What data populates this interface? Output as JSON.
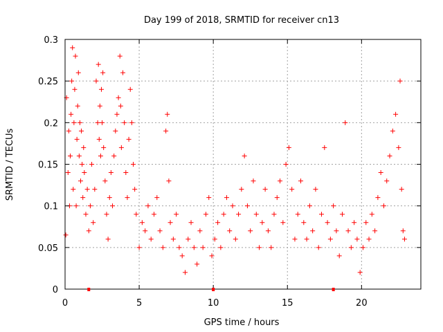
{
  "chart_data": {
    "type": "scatter",
    "title": "Day 199 of 2018, SRMTID for receiver cn13",
    "xlabel": "GPS time / hours",
    "ylabel": "SRMTID / TECUs",
    "xlim": [
      0,
      24
    ],
    "ylim": [
      0,
      0.3
    ],
    "x_ticks": [
      0,
      5,
      10,
      15,
      20
    ],
    "x_tick_labels": [
      "0",
      "5",
      "10",
      "15",
      "20"
    ],
    "y_ticks": [
      0,
      0.05,
      0.1,
      0.15,
      0.2,
      0.25,
      0.3
    ],
    "y_tick_labels": [
      "0",
      "0.05",
      "0.1",
      "0.15",
      "0.2",
      "0.25",
      "0.3"
    ],
    "grid": true,
    "marker": "+",
    "color": "#ff0000",
    "series": [
      {
        "name": "SRMTID",
        "points": [
          [
            0.05,
            0.065
          ],
          [
            0.1,
            0.23
          ],
          [
            0.2,
            0.14
          ],
          [
            0.25,
            0.19
          ],
          [
            0.3,
            0.1
          ],
          [
            0.35,
            0.16
          ],
          [
            0.4,
            0.21
          ],
          [
            0.45,
            0.25
          ],
          [
            0.5,
            0.29
          ],
          [
            0.55,
            0.12
          ],
          [
            0.6,
            0.2
          ],
          [
            0.65,
            0.24
          ],
          [
            0.7,
            0.28
          ],
          [
            0.75,
            0.1
          ],
          [
            0.8,
            0.18
          ],
          [
            0.85,
            0.22
          ],
          [
            0.9,
            0.26
          ],
          [
            0.95,
            0.16
          ],
          [
            1.0,
            0.2
          ],
          [
            1.05,
            0.13
          ],
          [
            1.1,
            0.19
          ],
          [
            1.15,
            0.15
          ],
          [
            1.2,
            0.11
          ],
          [
            1.25,
            0.17
          ],
          [
            1.3,
            0.14
          ],
          [
            1.4,
            0.09
          ],
          [
            1.5,
            0.12
          ],
          [
            1.6,
            0.07
          ],
          [
            1.7,
            0.1
          ],
          [
            1.8,
            0.15
          ],
          [
            1.9,
            0.08
          ],
          [
            2.0,
            0.12
          ],
          [
            2.1,
            0.25
          ],
          [
            2.2,
            0.2
          ],
          [
            2.25,
            0.27
          ],
          [
            2.3,
            0.18
          ],
          [
            2.35,
            0.22
          ],
          [
            2.4,
            0.16
          ],
          [
            2.45,
            0.24
          ],
          [
            2.5,
            0.2
          ],
          [
            2.55,
            0.26
          ],
          [
            2.6,
            0.17
          ],
          [
            2.7,
            0.13
          ],
          [
            2.8,
            0.09
          ],
          [
            2.9,
            0.06
          ],
          [
            3.0,
            0.11
          ],
          [
            3.1,
            0.14
          ],
          [
            3.2,
            0.1
          ],
          [
            3.3,
            0.16
          ],
          [
            3.4,
            0.19
          ],
          [
            3.5,
            0.21
          ],
          [
            3.6,
            0.23
          ],
          [
            3.7,
            0.28
          ],
          [
            3.75,
            0.22
          ],
          [
            3.8,
            0.17
          ],
          [
            3.9,
            0.26
          ],
          [
            4.0,
            0.2
          ],
          [
            4.1,
            0.14
          ],
          [
            4.2,
            0.11
          ],
          [
            4.3,
            0.18
          ],
          [
            4.4,
            0.24
          ],
          [
            4.5,
            0.2
          ],
          [
            4.6,
            0.15
          ],
          [
            4.7,
            0.12
          ],
          [
            4.8,
            0.09
          ],
          [
            5.0,
            0.05
          ],
          [
            5.2,
            0.08
          ],
          [
            5.4,
            0.07
          ],
          [
            5.6,
            0.1
          ],
          [
            5.8,
            0.06
          ],
          [
            6.0,
            0.09
          ],
          [
            6.2,
            0.11
          ],
          [
            6.4,
            0.07
          ],
          [
            6.6,
            0.05
          ],
          [
            6.8,
            0.19
          ],
          [
            6.9,
            0.21
          ],
          [
            7.0,
            0.13
          ],
          [
            7.1,
            0.08
          ],
          [
            7.3,
            0.06
          ],
          [
            7.5,
            0.09
          ],
          [
            7.7,
            0.05
          ],
          [
            7.9,
            0.04
          ],
          [
            8.1,
            0.02
          ],
          [
            8.3,
            0.06
          ],
          [
            8.5,
            0.08
          ],
          [
            8.7,
            0.05
          ],
          [
            8.9,
            0.03
          ],
          [
            9.1,
            0.07
          ],
          [
            9.3,
            0.05
          ],
          [
            9.5,
            0.09
          ],
          [
            9.7,
            0.11
          ],
          [
            9.9,
            0.04
          ],
          [
            10.1,
            0.06
          ],
          [
            10.3,
            0.08
          ],
          [
            10.5,
            0.05
          ],
          [
            10.7,
            0.09
          ],
          [
            10.9,
            0.11
          ],
          [
            11.1,
            0.07
          ],
          [
            11.3,
            0.1
          ],
          [
            11.5,
            0.06
          ],
          [
            11.7,
            0.09
          ],
          [
            11.9,
            0.12
          ],
          [
            12.1,
            0.16
          ],
          [
            12.3,
            0.1
          ],
          [
            12.5,
            0.07
          ],
          [
            12.7,
            0.13
          ],
          [
            12.9,
            0.09
          ],
          [
            13.1,
            0.05
          ],
          [
            13.3,
            0.08
          ],
          [
            13.5,
            0.12
          ],
          [
            13.7,
            0.07
          ],
          [
            13.9,
            0.05
          ],
          [
            14.1,
            0.09
          ],
          [
            14.3,
            0.11
          ],
          [
            14.5,
            0.13
          ],
          [
            14.7,
            0.08
          ],
          [
            14.9,
            0.15
          ],
          [
            15.1,
            0.17
          ],
          [
            15.3,
            0.12
          ],
          [
            15.5,
            0.06
          ],
          [
            15.7,
            0.09
          ],
          [
            15.9,
            0.13
          ],
          [
            16.1,
            0.08
          ],
          [
            16.3,
            0.06
          ],
          [
            16.5,
            0.1
          ],
          [
            16.7,
            0.07
          ],
          [
            16.9,
            0.12
          ],
          [
            17.1,
            0.05
          ],
          [
            17.3,
            0.09
          ],
          [
            17.5,
            0.17
          ],
          [
            17.7,
            0.08
          ],
          [
            17.9,
            0.06
          ],
          [
            18.1,
            0.1
          ],
          [
            18.3,
            0.07
          ],
          [
            18.5,
            0.04
          ],
          [
            18.7,
            0.09
          ],
          [
            18.9,
            0.2
          ],
          [
            19.1,
            0.07
          ],
          [
            19.3,
            0.05
          ],
          [
            19.5,
            0.08
          ],
          [
            19.7,
            0.06
          ],
          [
            19.9,
            0.02
          ],
          [
            20.1,
            0.05
          ],
          [
            20.3,
            0.08
          ],
          [
            20.5,
            0.06
          ],
          [
            20.7,
            0.09
          ],
          [
            20.9,
            0.07
          ],
          [
            21.1,
            0.11
          ],
          [
            21.3,
            0.14
          ],
          [
            21.5,
            0.1
          ],
          [
            21.7,
            0.13
          ],
          [
            21.9,
            0.16
          ],
          [
            22.1,
            0.19
          ],
          [
            22.3,
            0.21
          ],
          [
            22.5,
            0.17
          ],
          [
            22.6,
            0.25
          ],
          [
            22.7,
            0.12
          ],
          [
            22.8,
            0.07
          ],
          [
            22.9,
            0.06
          ]
        ]
      }
    ],
    "axis_markers_x": [
      1.6,
      10.0,
      18.1
    ]
  }
}
